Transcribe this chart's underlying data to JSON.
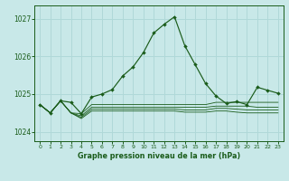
{
  "title": "Graphe pression niveau de la mer (hPa)",
  "bg_color": "#c8e8e8",
  "line_color": "#1a5c1a",
  "grid_color": "#b0d8d8",
  "ylim": [
    1023.75,
    1027.35
  ],
  "xlim": [
    -0.5,
    23.5
  ],
  "yticks": [
    1024,
    1025,
    1026,
    1027
  ],
  "xtick_labels": [
    "0",
    "1",
    "2",
    "3",
    "4",
    "5",
    "6",
    "7",
    "8",
    "9",
    "10",
    "11",
    "12",
    "13",
    "14",
    "15",
    "16",
    "17",
    "18",
    "19",
    "20",
    "21",
    "22",
    "23"
  ],
  "main_y": [
    1024.72,
    1024.5,
    1024.82,
    1024.78,
    1024.48,
    1024.92,
    1025.0,
    1025.12,
    1025.48,
    1025.72,
    1026.1,
    1026.62,
    1026.85,
    1027.05,
    1026.28,
    1025.78,
    1025.28,
    1024.95,
    1024.75,
    1024.8,
    1024.72,
    1025.18,
    1025.1,
    1025.02
  ],
  "line2_y": [
    1024.72,
    1024.5,
    1024.82,
    1024.5,
    1024.48,
    1024.72,
    1024.72,
    1024.72,
    1024.72,
    1024.72,
    1024.72,
    1024.72,
    1024.72,
    1024.72,
    1024.72,
    1024.72,
    1024.72,
    1024.78,
    1024.78,
    1024.78,
    1024.78,
    1024.78,
    1024.78,
    1024.78
  ],
  "line3_y": [
    1024.72,
    1024.5,
    1024.82,
    1024.5,
    1024.42,
    1024.65,
    1024.65,
    1024.65,
    1024.65,
    1024.65,
    1024.65,
    1024.65,
    1024.65,
    1024.65,
    1024.65,
    1024.65,
    1024.65,
    1024.68,
    1024.68,
    1024.68,
    1024.68,
    1024.65,
    1024.65,
    1024.65
  ],
  "line4_y": [
    1024.72,
    1024.5,
    1024.82,
    1024.5,
    1024.38,
    1024.6,
    1024.6,
    1024.6,
    1024.6,
    1024.6,
    1024.6,
    1024.6,
    1024.6,
    1024.6,
    1024.58,
    1024.58,
    1024.58,
    1024.62,
    1024.62,
    1024.6,
    1024.58,
    1024.58,
    1024.58,
    1024.58
  ],
  "line5_y": [
    1024.72,
    1024.5,
    1024.82,
    1024.5,
    1024.35,
    1024.55,
    1024.55,
    1024.55,
    1024.55,
    1024.55,
    1024.55,
    1024.55,
    1024.55,
    1024.55,
    1024.52,
    1024.52,
    1024.52,
    1024.55,
    1024.55,
    1024.52,
    1024.5,
    1024.5,
    1024.5,
    1024.5
  ]
}
